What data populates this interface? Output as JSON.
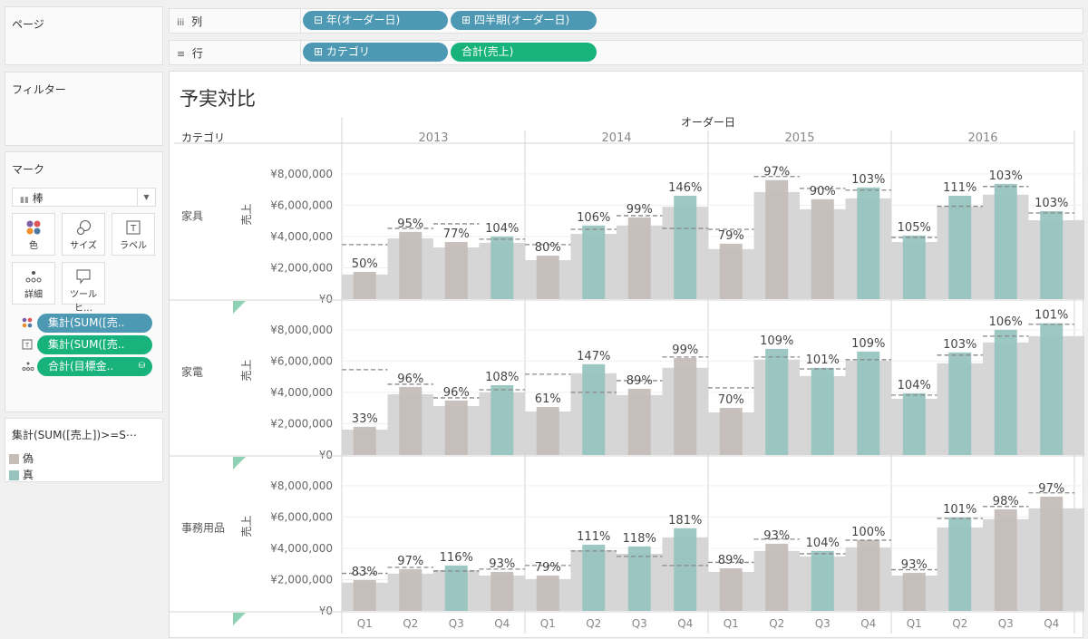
{
  "left_panel": {
    "pages_title": "ページ",
    "filters_title": "フィルター",
    "marks": {
      "title": "マーク",
      "mark_type": "棒",
      "buttons": [
        {
          "label": "色",
          "icon": "color-dots-icon"
        },
        {
          "label": "サイズ",
          "icon": "size-icon"
        },
        {
          "label": "ラベル",
          "icon": "label-icon"
        },
        {
          "label": "詳細",
          "icon": "detail-icon"
        },
        {
          "label": "ツールヒ…",
          "icon": "tooltip-icon"
        }
      ],
      "pills": [
        {
          "label": "集計(SUM([売..",
          "icon": "color-dots-icon",
          "color": "#4d98b3"
        },
        {
          "label": "集計(SUM([売..",
          "icon": "label-icon",
          "color": "#18b37c"
        },
        {
          "label": "合計(目標金..",
          "icon": "detail-icon",
          "color": "#18b37c"
        }
      ]
    },
    "legend": {
      "title": "集計(SUM([売上])>=S⋯",
      "items": [
        {
          "label": "偽",
          "color": "#c5bdb8"
        },
        {
          "label": "真",
          "color": "#97c4bf"
        }
      ]
    }
  },
  "shelves": {
    "columns": {
      "label": "列",
      "pills": [
        "年(オーダー日)",
        "四半期(オーダー日)"
      ]
    },
    "rows": {
      "label": "行",
      "pills": [
        "カテゴリ",
        "合計(売上)"
      ]
    }
  },
  "viz": {
    "title": "予実対比",
    "column_header": "オーダー日",
    "row_header": "カテゴリ"
  },
  "chart_data": {
    "type": "bar",
    "title": "予実対比",
    "ylabel": "売上",
    "xlabel": "オーダー日",
    "yticks": [
      "¥0",
      "¥2,000,000",
      "¥4,000,000",
      "¥6,000,000",
      "¥8,000,000"
    ],
    "ytick_values": [
      0,
      2000000,
      4000000,
      6000000,
      8000000
    ],
    "ylim": [
      0,
      9900000
    ],
    "grid": true,
    "years": [
      "2013",
      "2014",
      "2015",
      "2016"
    ],
    "quarters": [
      "Q1",
      "Q2",
      "Q3",
      "Q4"
    ],
    "colors": {
      "false": "#c5bdb8",
      "true": "#97c4bf",
      "area": "#d6d6d6",
      "target": "#888888"
    },
    "rows": [
      {
        "category": "家具",
        "years": [
          {
            "sales": [
              1740000,
              4290000,
              3650000,
              4000000
            ],
            "target": [
              3480000,
              4520000,
              4810000,
              3830000
            ],
            "area": [
              1570000,
              3880000,
              3300000,
              3600000
            ],
            "labels": [
              "50%",
              "95%",
              "77%",
              "104%"
            ],
            "met": [
              false,
              false,
              false,
              true
            ]
          },
          {
            "sales": [
              2780000,
              4700000,
              5220000,
              6600000
            ],
            "target": [
              3480000,
              4460000,
              5330000,
              4520000
            ],
            "area": [
              2490000,
              4170000,
              4700000,
              5900000
            ],
            "labels": [
              "80%",
              "106%",
              "99%",
              "146%"
            ],
            "met": [
              false,
              true,
              false,
              true
            ]
          },
          {
            "sales": [
              3540000,
              7600000,
              6380000,
              7130000
            ],
            "target": [
              4460000,
              7830000,
              7070000,
              6960000
            ],
            "area": [
              3190000,
              6840000,
              5740000,
              6430000
            ],
            "labels": [
              "79%",
              "97%",
              "90%",
              "103%"
            ],
            "met": [
              false,
              false,
              false,
              true
            ]
          },
          {
            "sales": [
              4060000,
              6600000,
              7360000,
              5620000
            ],
            "target": [
              3940000,
              5930000,
              7190000,
              5500000
            ],
            "area": [
              3650000,
              5910000,
              6670000,
              5040000
            ],
            "labels": [
              "105%",
              "111%",
              "103%",
              "103%"
            ],
            "met": [
              true,
              true,
              true,
              true
            ]
          }
        ]
      },
      {
        "category": "家電",
        "years": [
          {
            "sales": [
              1800000,
              4350000,
              3480000,
              4460000
            ],
            "target": [
              5450000,
              4520000,
              3650000,
              4170000
            ],
            "area": [
              1620000,
              3880000,
              3130000,
              4000000
            ],
            "labels": [
              "33%",
              "96%",
              "96%",
              "108%"
            ],
            "met": [
              false,
              false,
              false,
              true
            ]
          },
          {
            "sales": [
              3070000,
              5800000,
              4230000,
              6200000
            ],
            "target": [
              5160000,
              4000000,
              4750000,
              6260000
            ],
            "area": [
              2780000,
              5220000,
              3830000,
              5570000
            ],
            "labels": [
              "61%",
              "147%",
              "89%",
              "99%"
            ],
            "met": [
              false,
              true,
              false,
              false
            ]
          },
          {
            "sales": [
              3010000,
              6780000,
              5570000,
              6610000
            ],
            "target": [
              4290000,
              6260000,
              5500000,
              6090000
            ],
            "area": [
              2720000,
              6090000,
              5040000,
              6030000
            ],
            "labels": [
              "70%",
              "109%",
              "101%",
              "109%"
            ],
            "met": [
              false,
              true,
              true,
              true
            ]
          },
          {
            "sales": [
              3940000,
              6550000,
              8000000,
              8410000
            ],
            "target": [
              3830000,
              6380000,
              7590000,
              8350000
            ],
            "area": [
              3590000,
              5860000,
              7190000,
              7590000
            ],
            "labels": [
              "104%",
              "103%",
              "106%",
              "101%"
            ],
            "met": [
              true,
              true,
              true,
              true
            ]
          }
        ]
      },
      {
        "category": "事務用品",
        "years": [
          {
            "sales": [
              1970000,
              2670000,
              2900000,
              2490000
            ],
            "target": [
              2400000,
              2780000,
              2550000,
              2670000
            ],
            "area": [
              1800000,
              2380000,
              2610000,
              2260000
            ],
            "labels": [
              "83%",
              "97%",
              "116%",
              "93%"
            ],
            "met": [
              false,
              false,
              true,
              false
            ]
          },
          {
            "sales": [
              2260000,
              4230000,
              4120000,
              5280000
            ],
            "target": [
              2900000,
              3830000,
              3480000,
              2900000
            ],
            "area": [
              2030000,
              3880000,
              3650000,
              4700000
            ],
            "labels": [
              "79%",
              "111%",
              "118%",
              "181%"
            ],
            "met": [
              false,
              true,
              true,
              true
            ]
          },
          {
            "sales": [
              2720000,
              4290000,
              3830000,
              4520000
            ],
            "target": [
              3100000,
              4580000,
              3650000,
              4520000
            ],
            "area": [
              2490000,
              3830000,
              3480000,
              4060000
            ],
            "labels": [
              "89%",
              "93%",
              "104%",
              "100%"
            ],
            "met": [
              false,
              false,
              true,
              false
            ]
          },
          {
            "sales": [
              2430000,
              5970000,
              6490000,
              7300000
            ],
            "target": [
              2630000,
              5910000,
              6670000,
              7540000
            ],
            "area": [
              2260000,
              5330000,
              5860000,
              6550000
            ],
            "labels": [
              "93%",
              "101%",
              "98%",
              "97%"
            ],
            "met": [
              false,
              true,
              false,
              false
            ]
          }
        ]
      }
    ]
  }
}
